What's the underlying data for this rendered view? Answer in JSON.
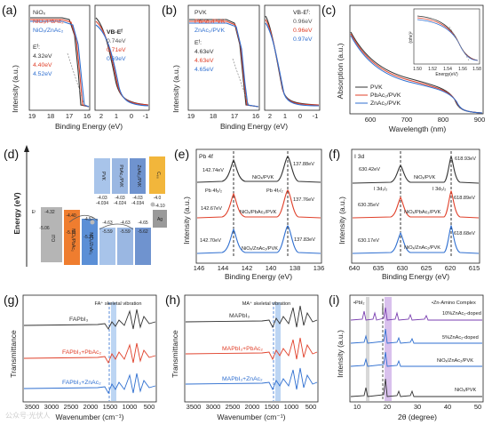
{
  "panels": {
    "a": {
      "label": "(a)",
      "ylabel": "Intensity (a.u.)",
      "xlabel": "Binding Energy (eV)",
      "ticks_left": [
        "19",
        "18",
        "17",
        "16"
      ],
      "ticks_right": [
        "2",
        "1",
        "0",
        "-1"
      ],
      "legend": [
        "NiOₓ",
        "NiOₓ/PbAc₂",
        "NiOₓ/ZnAc₂"
      ],
      "ef_title": "Eᶠ:",
      "ef_values": [
        "4.32eV",
        "4.40eV",
        "4.52eV"
      ],
      "vb_title": "VB-Eᶠ",
      "vb_values": [
        "0.74eV",
        "0.71eV",
        "0.69eV"
      ]
    },
    "b": {
      "label": "(b)",
      "ylabel": "Intensity (a.u.)",
      "xlabel": "Binding Energy (eV)",
      "ticks_left": [
        "19",
        "18",
        "17",
        "16"
      ],
      "ticks_right": [
        "2",
        "1",
        "0",
        "-1"
      ],
      "legend": [
        "PVK",
        "PbAc₂/PVK",
        "ZnAc₂/PVK"
      ],
      "ef_title": "Eᶠ:",
      "ef_values": [
        "4.63eV",
        "4.63eV",
        "4.65eV"
      ],
      "vb_title": "VB-Eᶠ:",
      "vb_values": [
        "0.96eV",
        "0.96eV",
        "0.97eV"
      ]
    },
    "c": {
      "label": "(c)",
      "ylabel": "Absorption (a.u.)",
      "xlabel": "Wavelength (nm)",
      "ticks": [
        "600",
        "700",
        "800",
        "900"
      ],
      "legend": [
        "PVK",
        "PbAc₂/PVK",
        "ZnAc₂/PVK"
      ],
      "inset_ylabel": "(αhν)²",
      "inset_xlabel": "Energy(eV)",
      "inset_ticks": [
        "1.50",
        "1.52",
        "1.54",
        "1.56",
        "1.58"
      ]
    },
    "d": {
      "label": "(d)",
      "ylabel": "Energy (eV)",
      "materials": [
        "ITO",
        "NiOₓ/PbAc₂",
        "NiOₓ/ZnAc₂",
        "PVK",
        "PbAc₂/PVK",
        "ZnAc₂/PVK",
        "C₆₀",
        "Ag"
      ],
      "top_values": [
        "-4.03",
        "-4.03",
        "-4.03",
        "-4.0"
      ],
      "top_values2": [
        "-4.034",
        "-4.024",
        "-4.034"
      ],
      "mid_values": [
        "-4.32",
        "-4.40",
        "-4.52",
        "-4.63",
        "-4.63",
        "-4.65",
        "-4.10"
      ],
      "low_values": [
        "-5.06",
        "-5.11",
        "-5.21",
        "-5.59",
        "-5.59",
        "-5.62"
      ],
      "ef_label": "Eᶠ"
    },
    "e": {
      "label": "(e)",
      "title": "Pb 4f",
      "ylabel": "Intensity (a.u.)",
      "xlabel": "Binding Energy (eV)",
      "ticks": [
        "146",
        "144",
        "142",
        "140",
        "138",
        "136"
      ],
      "peaks": [
        "142.74eV",
        "137.88eV",
        "142.67eV",
        "137.76eV",
        "142.70eV",
        "137.83eV"
      ],
      "samples": [
        "NiOₓ/PVK",
        "NiOₓ/PbAc₂/PVK",
        "NiOₓ/ZnAc₂/PVK"
      ],
      "orbitals": [
        "Pb 4f₅/₂",
        "Pb 4f₇/₂"
      ]
    },
    "f": {
      "label": "(f)",
      "title": "I 3d",
      "ylabel": "Intensity (a.u.)",
      "xlabel": "Binding Energy (eV)",
      "ticks": [
        "640",
        "635",
        "630",
        "625",
        "620",
        "615"
      ],
      "peaks": [
        "630.42eV",
        "618.93eV",
        "630.35eV",
        "618.89eV",
        "630.17eV",
        "618.68eV"
      ],
      "samples": [
        "NiOₓ/PVK",
        "NiOₓ/PbAc₂/PVK",
        "NiOₓ/ZnAc₂/PVK"
      ],
      "orbitals": [
        "I 3d₃/₂",
        "I 3d₅/₂"
      ]
    },
    "g": {
      "label": "(g)",
      "ylabel": "Transmittance",
      "xlabel": "Wavenumber (cm⁻¹)",
      "ticks": [
        "3500",
        "3000",
        "2500",
        "2000",
        "1500",
        "1000",
        "500"
      ],
      "annotation": "FA⁺ skeletal vibration",
      "samples": [
        "FAPbI₃",
        "FAPbI₃+PbAc₂",
        "FAPbI₃+ZnAc₂"
      ]
    },
    "h": {
      "label": "(h)",
      "ylabel": "Transmittance",
      "xlabel": "Wavenumber (cm⁻¹)",
      "ticks": [
        "3500",
        "3000",
        "2500",
        "2000",
        "1500",
        "1000",
        "500"
      ],
      "annotation": "MA⁺ skeletal vibration",
      "samples": [
        "MAPbI₃",
        "MAPbI₃+PbAc₂",
        "MAPbI₃+ZnAc₂"
      ]
    },
    "i": {
      "label": "(i)",
      "ylabel": "Intensity (a.u.)",
      "xlabel": "2θ (degree)",
      "ticks": [
        "10",
        "20",
        "30",
        "40",
        "50"
      ],
      "legend_pbi": "•PbI₂",
      "legend_zn": "•Zn-Amino Complex",
      "samples": [
        "10%ZnAc₂-doped",
        "5%ZnAc₂-doped",
        "NiOₓ/ZnAc₂/PVK",
        "NiOₓ/PVK"
      ]
    }
  },
  "watermark": "公众号·光伏人",
  "colors": {
    "black": "#333333",
    "red": "#e0402a",
    "blue": "#2f6fd0",
    "purple": "#7a3fb0",
    "gray": "#888888"
  },
  "chart_data": [
    {
      "panel": "e",
      "type": "line",
      "series": [
        {
          "name": "NiOₓ/PVK",
          "peaks_x": [
            142.74,
            137.88
          ]
        },
        {
          "name": "NiOₓ/PbAc₂/PVK",
          "peaks_x": [
            142.67,
            137.76
          ]
        },
        {
          "name": "NiOₓ/ZnAc₂/PVK",
          "peaks_x": [
            142.7,
            137.83
          ]
        }
      ],
      "xlim": [
        146,
        136
      ]
    },
    {
      "panel": "f",
      "type": "line",
      "series": [
        {
          "name": "NiOₓ/PVK",
          "peaks_x": [
            630.42,
            618.93
          ]
        },
        {
          "name": "NiOₓ/PbAc₂/PVK",
          "peaks_x": [
            630.35,
            618.89
          ]
        },
        {
          "name": "NiOₓ/ZnAc₂/PVK",
          "peaks_x": [
            630.17,
            618.68
          ]
        }
      ],
      "xlim": [
        640,
        615
      ]
    }
  ]
}
